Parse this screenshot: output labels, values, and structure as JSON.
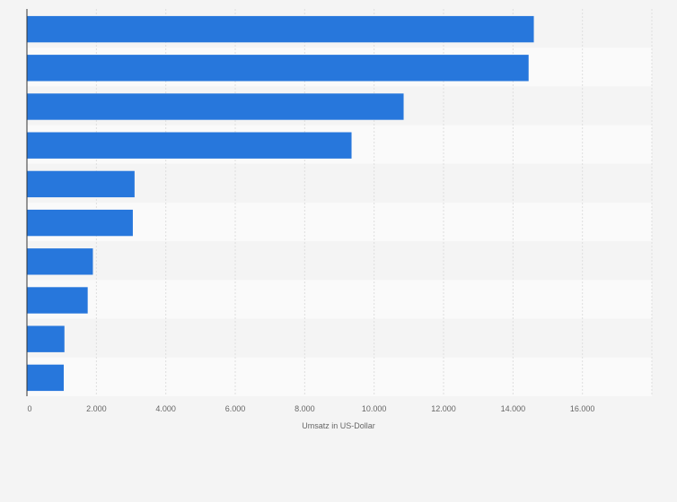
{
  "chart_data": {
    "type": "bar",
    "orientation": "horizontal",
    "title": "",
    "xlabel": "Umsatz in US-Dollar",
    "ylabel": "",
    "categories": [
      "",
      "",
      "",
      "",
      "",
      "",
      "",
      "",
      "",
      ""
    ],
    "values": [
      14600,
      14450,
      10850,
      9350,
      3100,
      3050,
      1900,
      1750,
      1080,
      1060
    ],
    "xlim": [
      0,
      18000
    ],
    "xticks": [
      0,
      2000,
      4000,
      6000,
      8000,
      10000,
      12000,
      14000,
      16000
    ],
    "xtick_labels": [
      "0",
      "2.000",
      "4.000",
      "6.000",
      "8.000",
      "10.000",
      "12.000",
      "14.000",
      "16.000"
    ],
    "grid": true,
    "bar_color": "#2777dc",
    "row_band_colors": [
      "#f4f4f4",
      "#fafafa"
    ],
    "grid_color": "#dedede"
  }
}
